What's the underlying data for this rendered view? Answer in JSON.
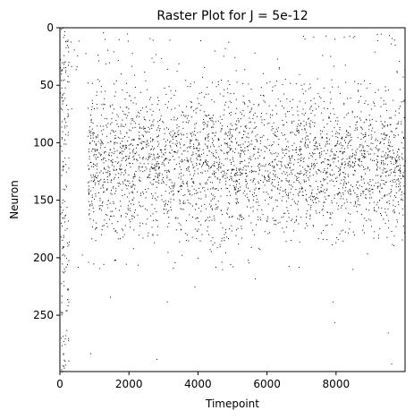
{
  "chart_data": {
    "type": "scatter",
    "title": "Raster Plot for J = 5e-12",
    "xlabel": "Timepoint",
    "ylabel": "Neuron",
    "xlim": [
      0,
      9999
    ],
    "ylim": [
      299,
      0
    ],
    "y_inverted": true,
    "xticks": [
      0,
      2000,
      4000,
      6000,
      8000
    ],
    "xtick_labels": [
      "0",
      "2000",
      "4000",
      "6000",
      "8000"
    ],
    "yticks": [
      0,
      50,
      100,
      150,
      200,
      250
    ],
    "ytick_labels": [
      "0",
      "50",
      "100",
      "150",
      "200",
      "250"
    ],
    "grid": false,
    "legend": "none",
    "marker_color": "#000000",
    "series": [
      {
        "description": "spike events (neuron index vs timepoint); dense band of activity for neurons ~45–185, sparse firing elsewhere",
        "points": [
          [
            130,
            3
          ],
          [
            1250,
            4
          ],
          [
            1950,
            5
          ],
          [
            95,
            8
          ],
          [
            210,
            15
          ],
          [
            740,
            22
          ],
          [
            1680,
            28
          ],
          [
            460,
            36
          ],
          [
            2150,
            41
          ],
          [
            120,
            45
          ],
          [
            7450,
            44
          ],
          [
            930,
            48
          ],
          [
            5120,
            47
          ],
          [
            45,
            52
          ],
          [
            8880,
            52
          ],
          [
            60,
            58
          ],
          [
            330,
            70
          ],
          [
            70,
            90
          ],
          [
            50,
            95
          ],
          [
            80,
            120
          ],
          [
            40,
            128
          ],
          [
            90,
            140
          ],
          [
            65,
            152
          ],
          [
            75,
            165
          ],
          [
            55,
            172
          ],
          [
            100,
            182
          ],
          [
            85,
            190
          ],
          [
            130,
            198
          ],
          [
            60,
            205
          ],
          [
            70,
            212
          ],
          [
            110,
            224
          ],
          [
            50,
            233
          ],
          [
            60,
            248
          ],
          [
            1450,
            234
          ],
          [
            3900,
            225
          ],
          [
            3100,
            238
          ],
          [
            7900,
            238
          ],
          [
            7950,
            256
          ],
          [
            5650,
            218
          ],
          [
            4700,
            210
          ],
          [
            9500,
            265
          ],
          [
            75,
            268
          ],
          [
            50,
            276
          ],
          [
            95,
            283
          ],
          [
            880,
            283
          ],
          [
            150,
            293
          ],
          [
            2800,
            288
          ],
          [
            9600,
            292
          ],
          [
            40,
            297
          ],
          [
            60,
            299
          ]
        ]
      }
    ]
  }
}
